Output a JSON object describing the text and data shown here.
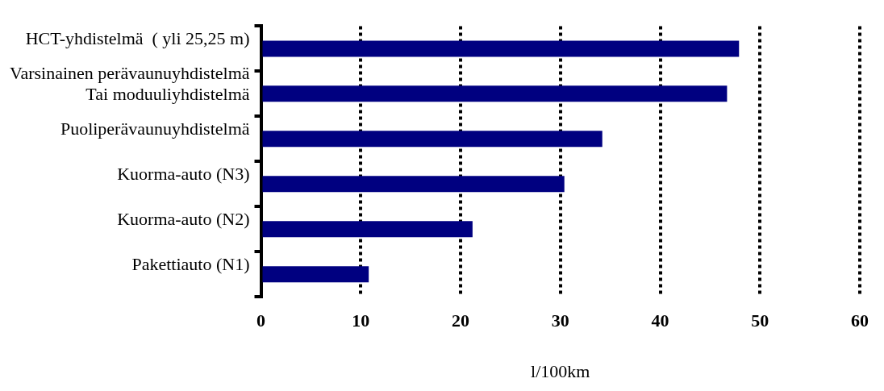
{
  "chart_data": {
    "type": "bar",
    "orientation": "horizontal",
    "categories": [
      "HCT-yhdistelmä  ( yli 25,25 m)",
      "Varsinainen perävaunuyhdistelmä\nTai moduuliyhdistelmä",
      "Puoliperävaunuyhdistelmä",
      "Kuorma-auto (N3)",
      "Kuorma-auto (N2)",
      "Pakettiauto (N1)"
    ],
    "values": [
      47.9,
      46.7,
      34.2,
      30.4,
      21.2,
      10.8
    ],
    "color": "#000080",
    "xlabel": "l/100km",
    "xlim": [
      0,
      60
    ],
    "xticks": [
      0,
      10,
      20,
      30,
      40,
      50,
      60
    ],
    "grid": "x",
    "legend": false
  }
}
